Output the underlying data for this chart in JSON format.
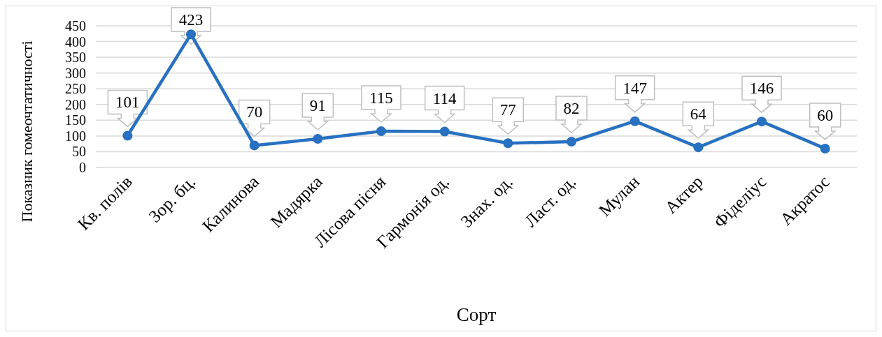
{
  "chart_data": {
    "type": "line",
    "xlabel": "Сорт",
    "ylabel": "Показник гомеочтатичності",
    "categories": [
      "Кв. полів",
      "Зор. бц.",
      "Калинова",
      "Мадярка",
      "Лісова пісня",
      "Гармонія од.",
      "Знах. од.",
      "Ласт. од.",
      "Мулан",
      "Актер",
      "Фіделіус",
      "Акратос"
    ],
    "series": [
      {
        "color": "#2771c0",
        "values": [
          101,
          423,
          70,
          91,
          115,
          114,
          77,
          82,
          147,
          64,
          146,
          60
        ]
      }
    ],
    "ylim": [
      0,
      450
    ],
    "yticks": [
      0,
      50,
      100,
      150,
      200,
      250,
      300,
      350,
      400,
      450
    ],
    "grid": "y",
    "marker": "circle",
    "line_style": "solid",
    "data_labels": true
  }
}
